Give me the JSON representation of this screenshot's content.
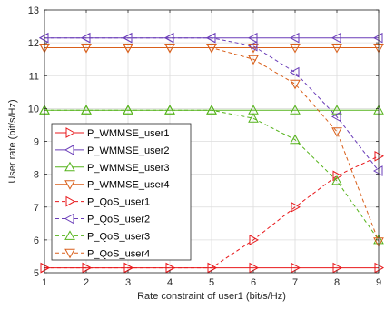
{
  "chart_data": {
    "type": "line",
    "xlabel": "Rate constraint of user1 (bit/s/Hz)",
    "ylabel": "User rate (bit/s/Hz)",
    "x": [
      1,
      2,
      3,
      4,
      5,
      6,
      7,
      8,
      9
    ],
    "xticks": [
      "1",
      "2",
      "3",
      "4",
      "5",
      "6",
      "7",
      "8",
      "9"
    ],
    "yticks": [
      "5",
      "6",
      "7",
      "8",
      "9",
      "10",
      "11",
      "12",
      "13"
    ],
    "xlim": [
      1,
      9
    ],
    "ylim": [
      5,
      13
    ],
    "grid": true,
    "legend_position": "bottom-left",
    "series": [
      {
        "name": "P_WMMSE_user1",
        "color": "#e8191c",
        "marker": "triangle-right",
        "dashed": false,
        "values": [
          5.15,
          5.15,
          5.15,
          5.15,
          5.15,
          5.15,
          5.15,
          5.15,
          5.15
        ]
      },
      {
        "name": "P_WMMSE_user2",
        "color": "#6a3db8",
        "marker": "triangle-left",
        "dashed": false,
        "values": [
          12.15,
          12.15,
          12.15,
          12.15,
          12.15,
          12.15,
          12.15,
          12.15,
          12.15
        ]
      },
      {
        "name": "P_WMMSE_user3",
        "color": "#55b31b",
        "marker": "triangle-up",
        "dashed": false,
        "values": [
          9.95,
          9.95,
          9.95,
          9.95,
          9.95,
          9.95,
          9.95,
          9.95,
          9.95
        ]
      },
      {
        "name": "P_WMMSE_user4",
        "color": "#d95f1a",
        "marker": "triangle-down",
        "dashed": false,
        "values": [
          11.85,
          11.85,
          11.85,
          11.85,
          11.85,
          11.85,
          11.85,
          11.85,
          11.85
        ]
      },
      {
        "name": "P_QoS_user1",
        "color": "#e8191c",
        "marker": "triangle-right",
        "dashed": true,
        "values": [
          5.15,
          5.15,
          5.15,
          5.15,
          5.15,
          6.0,
          7.0,
          7.95,
          8.55
        ]
      },
      {
        "name": "P_QoS_user2",
        "color": "#6a3db8",
        "marker": "triangle-left",
        "dashed": true,
        "values": [
          12.15,
          12.15,
          12.15,
          12.15,
          12.15,
          11.9,
          11.1,
          9.75,
          8.1
        ]
      },
      {
        "name": "P_QoS_user3",
        "color": "#55b31b",
        "marker": "triangle-up",
        "dashed": true,
        "values": [
          9.95,
          9.95,
          9.95,
          9.95,
          9.95,
          9.7,
          9.05,
          7.8,
          6.0
        ]
      },
      {
        "name": "P_QoS_user4",
        "color": "#d95f1a",
        "marker": "triangle-down",
        "dashed": true,
        "values": [
          11.85,
          11.85,
          11.85,
          11.85,
          11.85,
          11.5,
          10.75,
          9.3,
          5.95
        ]
      }
    ]
  }
}
